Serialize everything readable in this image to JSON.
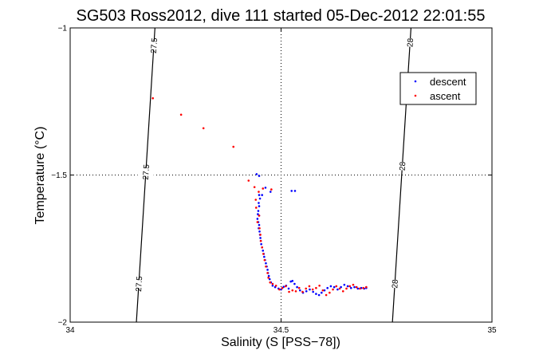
{
  "chart_data": {
    "type": "scatter",
    "title": "SG503 Ross2012, dive 111 started 05-Dec-2012 22:01:55",
    "xlabel": "Salinity (S [PSS−78])",
    "ylabel": "Temperature (°C)",
    "xlim": [
      34,
      35
    ],
    "ylim": [
      -2,
      -1
    ],
    "xticks": [
      34,
      34.5,
      35
    ],
    "xtick_labels": [
      "34",
      "34.5",
      "35"
    ],
    "yticks": [
      -2,
      -1.5,
      -1
    ],
    "ytick_labels": [
      "−2",
      "−1.5",
      "−1"
    ],
    "grid": true,
    "legend_position": "top-right",
    "contours": [
      {
        "value": "27.5",
        "points": [
          [
            34.201,
            -1.0
          ],
          [
            34.19,
            -1.25
          ],
          [
            34.179,
            -1.5
          ],
          [
            34.168,
            -1.75
          ],
          [
            34.157,
            -2.0
          ]
        ],
        "labels_at_y": [
          -1.06,
          -1.49,
          -1.87
        ]
      },
      {
        "value": "28",
        "points": [
          [
            34.808,
            -1.0
          ],
          [
            34.797,
            -1.25
          ],
          [
            34.786,
            -1.5
          ],
          [
            34.775,
            -1.75
          ],
          [
            34.764,
            -2.0
          ]
        ],
        "labels_at_y": [
          -1.05,
          -1.47,
          -1.87
        ]
      }
    ],
    "series": [
      {
        "name": "descent",
        "color": "#0000ff",
        "points": [
          [
            34.442,
            -1.497
          ],
          [
            34.448,
            -1.503
          ],
          [
            34.463,
            -1.543
          ],
          [
            34.448,
            -1.568
          ],
          [
            34.455,
            -1.568
          ],
          [
            34.45,
            -1.58
          ],
          [
            34.447,
            -1.595
          ],
          [
            34.448,
            -1.606
          ],
          [
            34.446,
            -1.622
          ],
          [
            34.445,
            -1.633
          ],
          [
            34.448,
            -1.638
          ],
          [
            34.444,
            -1.649
          ],
          [
            34.446,
            -1.66
          ],
          [
            34.448,
            -1.67
          ],
          [
            34.447,
            -1.681
          ],
          [
            34.449,
            -1.692
          ],
          [
            34.45,
            -1.703
          ],
          [
            34.451,
            -1.714
          ],
          [
            34.452,
            -1.724
          ],
          [
            34.453,
            -1.735
          ],
          [
            34.455,
            -1.746
          ],
          [
            34.457,
            -1.757
          ],
          [
            34.459,
            -1.768
          ],
          [
            34.46,
            -1.778
          ],
          [
            34.462,
            -1.789
          ],
          [
            34.464,
            -1.8
          ],
          [
            34.466,
            -1.811
          ],
          [
            34.468,
            -1.822
          ],
          [
            34.469,
            -1.833
          ],
          [
            34.471,
            -1.843
          ],
          [
            34.473,
            -1.854
          ],
          [
            34.476,
            -1.865
          ],
          [
            34.48,
            -1.876
          ],
          [
            34.486,
            -1.881
          ],
          [
            34.494,
            -1.886
          ],
          [
            34.5,
            -1.889
          ],
          [
            34.506,
            -1.88
          ],
          [
            34.512,
            -1.876
          ],
          [
            34.518,
            -1.886
          ],
          [
            34.523,
            -1.862
          ],
          [
            34.527,
            -1.86
          ],
          [
            34.532,
            -1.87
          ],
          [
            34.538,
            -1.881
          ],
          [
            34.545,
            -1.892
          ],
          [
            34.552,
            -1.9
          ],
          [
            34.56,
            -1.895
          ],
          [
            34.568,
            -1.889
          ],
          [
            34.576,
            -1.897
          ],
          [
            34.583,
            -1.904
          ],
          [
            34.59,
            -1.908
          ],
          [
            34.596,
            -1.9
          ],
          [
            34.603,
            -1.892
          ],
          [
            34.61,
            -1.884
          ],
          [
            34.618,
            -1.878
          ],
          [
            34.626,
            -1.881
          ],
          [
            34.634,
            -1.889
          ],
          [
            34.642,
            -1.881
          ],
          [
            34.65,
            -1.873
          ],
          [
            34.658,
            -1.878
          ],
          [
            34.666,
            -1.884
          ],
          [
            34.674,
            -1.881
          ],
          [
            34.682,
            -1.886
          ],
          [
            34.69,
            -1.884
          ],
          [
            34.697,
            -1.886
          ],
          [
            34.702,
            -1.884
          ],
          [
            34.525,
            -1.554
          ],
          [
            34.533,
            -1.554
          ],
          [
            34.475,
            -1.557
          ]
        ]
      },
      {
        "name": "ascent",
        "color": "#ff0000",
        "points": [
          [
            34.196,
            -1.239
          ],
          [
            34.263,
            -1.295
          ],
          [
            34.316,
            -1.341
          ],
          [
            34.387,
            -1.404
          ],
          [
            34.423,
            -1.519
          ],
          [
            34.437,
            -1.541
          ],
          [
            34.447,
            -1.557
          ],
          [
            34.44,
            -1.584
          ],
          [
            34.441,
            -1.611
          ],
          [
            34.448,
            -1.638
          ],
          [
            34.444,
            -1.66
          ],
          [
            34.449,
            -1.681
          ],
          [
            34.451,
            -1.703
          ],
          [
            34.452,
            -1.724
          ],
          [
            34.455,
            -1.746
          ],
          [
            34.458,
            -1.768
          ],
          [
            34.461,
            -1.789
          ],
          [
            34.464,
            -1.811
          ],
          [
            34.468,
            -1.833
          ],
          [
            34.47,
            -1.849
          ],
          [
            34.474,
            -1.865
          ],
          [
            34.48,
            -1.87
          ],
          [
            34.488,
            -1.876
          ],
          [
            34.496,
            -1.889
          ],
          [
            34.503,
            -1.884
          ],
          [
            34.511,
            -1.878
          ],
          [
            34.519,
            -1.897
          ],
          [
            34.527,
            -1.892
          ],
          [
            34.535,
            -1.895
          ],
          [
            34.543,
            -1.884
          ],
          [
            34.551,
            -1.897
          ],
          [
            34.559,
            -1.886
          ],
          [
            34.567,
            -1.878
          ],
          [
            34.575,
            -1.889
          ],
          [
            34.583,
            -1.884
          ],
          [
            34.591,
            -1.876
          ],
          [
            34.599,
            -1.892
          ],
          [
            34.607,
            -1.908
          ],
          [
            34.615,
            -1.9
          ],
          [
            34.623,
            -1.889
          ],
          [
            34.631,
            -1.878
          ],
          [
            34.639,
            -1.886
          ],
          [
            34.647,
            -1.895
          ],
          [
            34.655,
            -1.886
          ],
          [
            34.663,
            -1.878
          ],
          [
            34.671,
            -1.873
          ],
          [
            34.679,
            -1.881
          ],
          [
            34.687,
            -1.886
          ],
          [
            34.695,
            -1.884
          ],
          [
            34.702,
            -1.881
          ],
          [
            34.457,
            -1.546
          ],
          [
            34.477,
            -1.549
          ]
        ]
      }
    ]
  }
}
